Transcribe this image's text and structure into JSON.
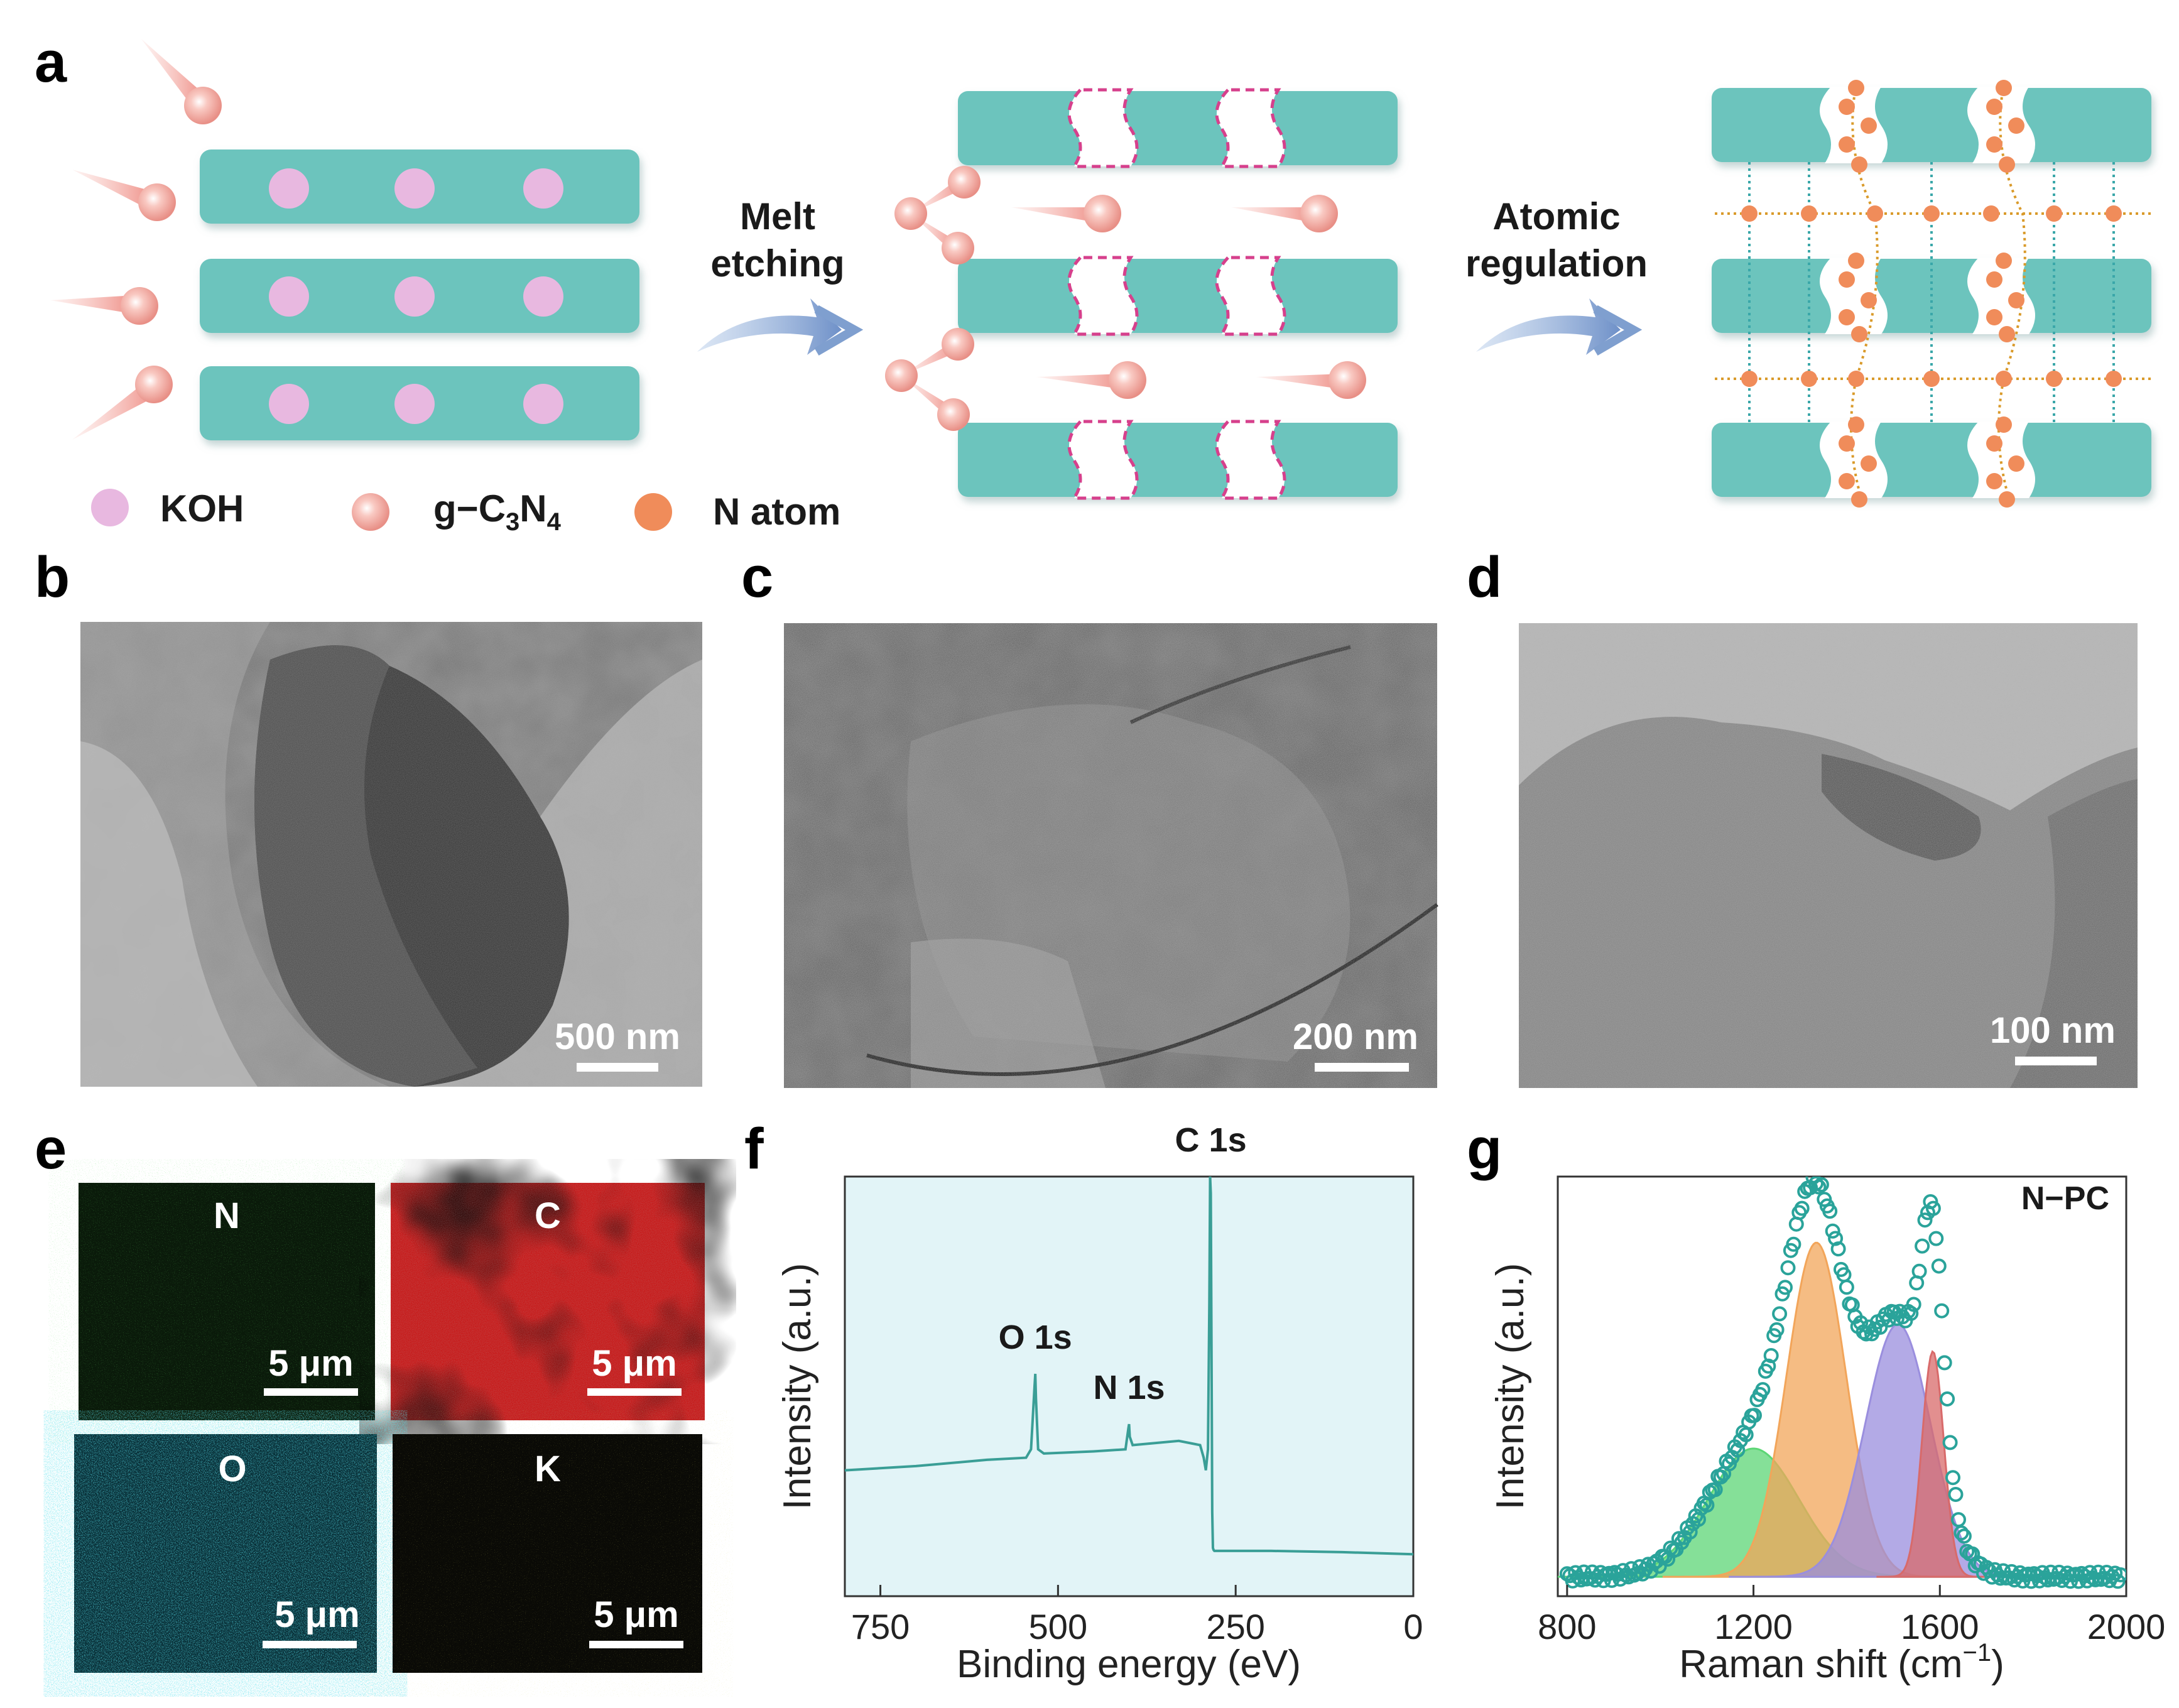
{
  "panels": {
    "a": "a",
    "b": "b",
    "c": "c",
    "d": "d",
    "e": "e",
    "f": "f",
    "g": "g"
  },
  "schematic": {
    "step1_line1": "Melt",
    "step1_line2": "etching",
    "step2_line1": "Atomic",
    "step2_line2": "regulation",
    "legend": {
      "koh": "KOH",
      "gcn_main": "g−C",
      "gcn_sub1": "3",
      "gcn_mid": "N",
      "gcn_sub2": "4",
      "natom": "N atom"
    },
    "colors": {
      "sheet": "#6cc4bd",
      "koh": "#e8b8e0",
      "gcn": "#f2a8a0",
      "natom": "#f08c5a",
      "arrow": "#7f9fcf",
      "defect": "#d6408c"
    }
  },
  "micrographs": {
    "b_scale": "500 nm",
    "c_scale": "200 nm",
    "d_scale": "100 nm"
  },
  "eds_maps": [
    {
      "element": "N",
      "scale": "5 μm",
      "color": "#1ea41e"
    },
    {
      "element": "C",
      "scale": "5 μm",
      "color": "#c81414"
    },
    {
      "element": "O",
      "scale": "5 μm",
      "color": "#18b4c8"
    },
    {
      "element": "K",
      "scale": "5 μm",
      "color": "#a0a020"
    }
  ],
  "chart_data": [
    {
      "panel": "f",
      "type": "line",
      "xlabel": "Binding energy (eV)",
      "ylabel": "Intensity (a.u.)",
      "xlim": [
        800,
        0
      ],
      "xticks": [
        750,
        500,
        250,
        0
      ],
      "ylim": [
        0,
        1
      ],
      "background": "#e2f4f7",
      "line_color": "#3a9e96",
      "annotations": [
        {
          "text": "C 1s",
          "x": 285
        },
        {
          "text": "O 1s",
          "x": 532
        },
        {
          "text": "N 1s",
          "x": 400
        }
      ],
      "x": [
        800,
        700,
        600,
        545,
        538,
        533,
        532,
        531,
        528,
        520,
        450,
        405,
        401,
        400,
        399,
        395,
        330,
        300,
        295,
        292,
        289,
        287,
        286,
        285,
        284,
        283,
        282,
        281,
        280,
        270,
        200,
        100,
        0
      ],
      "y": [
        0.3,
        0.31,
        0.325,
        0.33,
        0.35,
        0.5,
        0.53,
        0.47,
        0.35,
        0.34,
        0.345,
        0.35,
        0.4,
        0.41,
        0.38,
        0.36,
        0.37,
        0.36,
        0.33,
        0.3,
        0.35,
        0.7,
        1.0,
        0.96,
        0.6,
        0.2,
        0.115,
        0.11,
        0.108,
        0.108,
        0.108,
        0.105,
        0.1
      ]
    },
    {
      "panel": "g",
      "type": "area",
      "legend_text": "N−PC",
      "xlabel_main": "Raman shift (cm",
      "xlabel_sup": "−1",
      "xlabel_end": ")",
      "ylabel": "Intensity (a.u.)",
      "xlim": [
        780,
        2000
      ],
      "xticks": [
        800,
        1200,
        1600,
        2000
      ],
      "ylim": [
        0,
        1.08
      ],
      "series": [
        {
          "type": "gaussian",
          "center": 1200,
          "height": 0.33,
          "fwhm": 230,
          "color": "#5cd675"
        },
        {
          "type": "gaussian",
          "center": 1335,
          "height": 0.86,
          "fwhm": 150,
          "color": "#f2a55a"
        },
        {
          "type": "gaussian",
          "center": 1510,
          "height": 0.65,
          "fwhm": 165,
          "color": "#9a8ede"
        },
        {
          "type": "gaussian",
          "center": 1585,
          "height": 0.58,
          "fwhm": 55,
          "color": "#d86a6a"
        },
        {
          "type": "scatter",
          "color": "#2aa39a"
        }
      ]
    }
  ]
}
